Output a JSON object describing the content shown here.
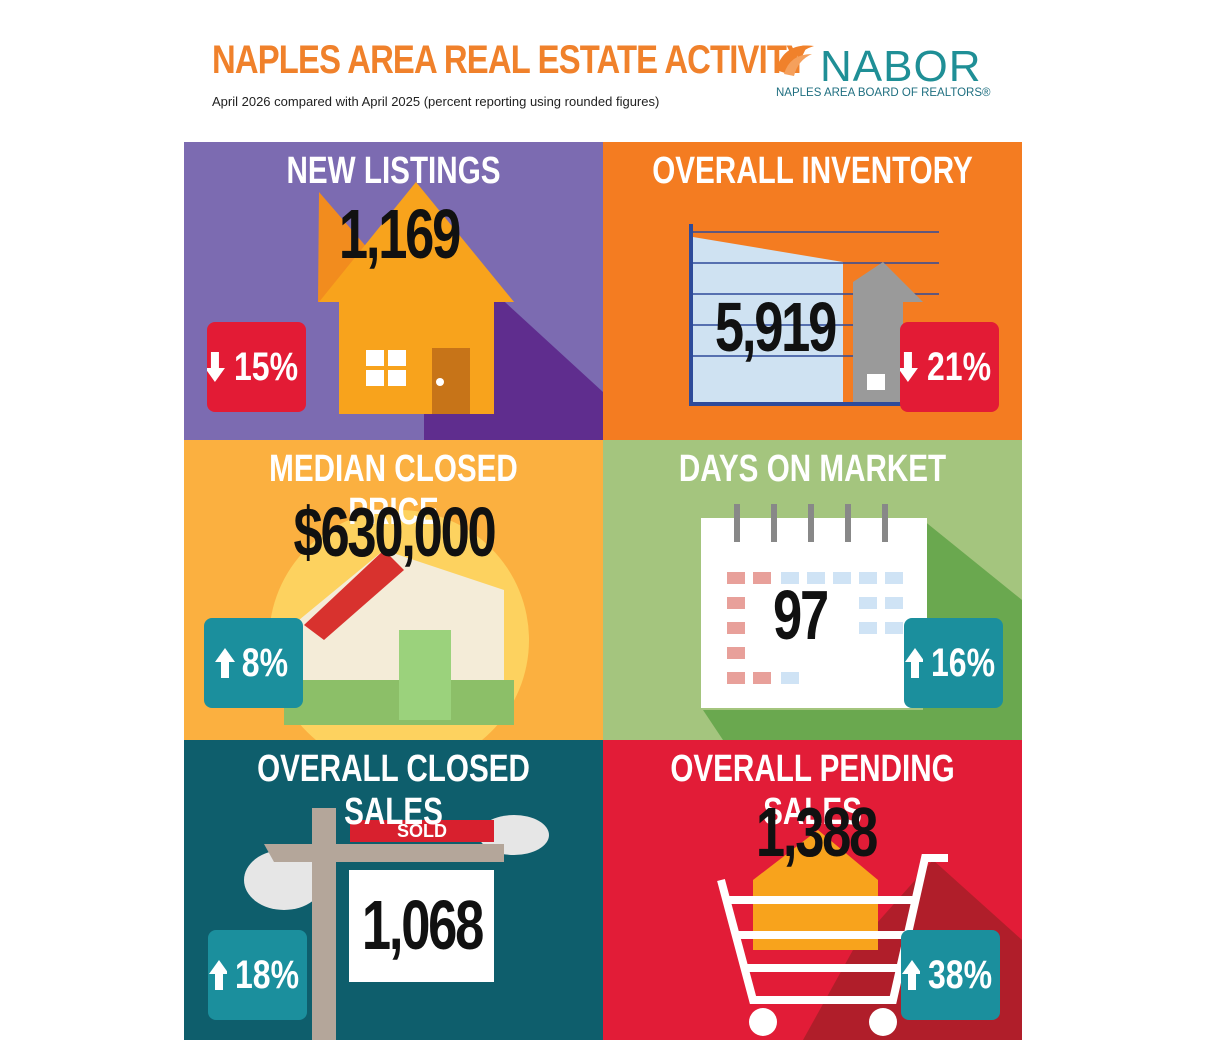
{
  "header": {
    "title": "NAPLES AREA REAL ESTATE ACTIVITY",
    "subtitle": "April 2026 compared with April 2025 (percent reporting using rounded figures)"
  },
  "logo": {
    "name": "NABOR",
    "tagline": "NAPLES AREA BOARD OF REALTORS®"
  },
  "tiles": [
    {
      "title": "NEW LISTINGS",
      "value": "1,169",
      "change": "15%",
      "direction": "down",
      "color": "#7c6bb1",
      "badge_color": "#e31b35"
    },
    {
      "title": "OVERALL INVENTORY",
      "value": "5,919",
      "change": "21%",
      "direction": "down",
      "color": "#f47c21",
      "badge_color": "#e31b35"
    },
    {
      "title": "MEDIAN CLOSED PRICE",
      "value": "$630,000",
      "change": "8%",
      "direction": "up",
      "color": "#fbb040",
      "badge_color": "#1b8f9d"
    },
    {
      "title": "DAYS ON MARKET",
      "value": "97",
      "change": "16%",
      "direction": "up",
      "color": "#a4c57e",
      "badge_color": "#1b8f9d"
    },
    {
      "title": "OVERALL CLOSED SALES",
      "value": "1,068",
      "change": "18%",
      "direction": "up",
      "color": "#0e5e6c",
      "badge_color": "#1b8f9d",
      "sign": "SOLD"
    },
    {
      "title": "OVERALL PENDING SALES",
      "value": "1,388",
      "change": "38%",
      "direction": "up",
      "color": "#e21c37",
      "badge_color": "#1b8f9d"
    }
  ]
}
